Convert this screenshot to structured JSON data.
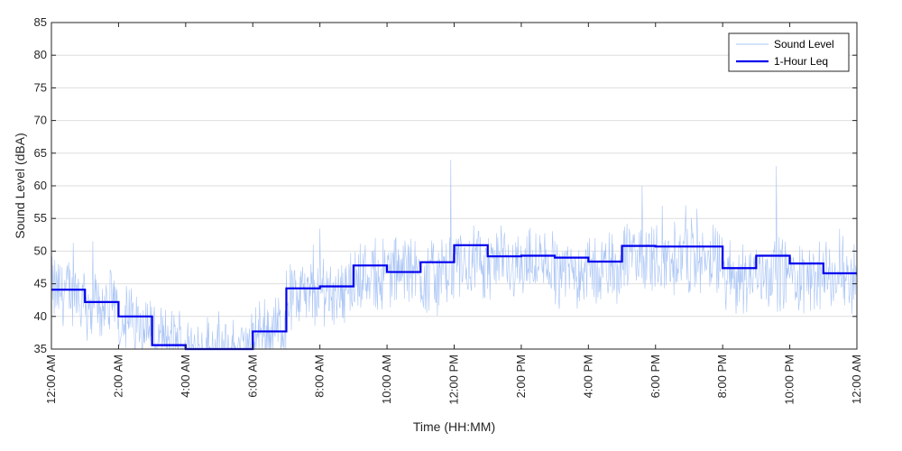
{
  "chart_data": {
    "type": "line",
    "xlabel": "Time (HH:MM)",
    "ylabel": "Sound Level (dBA)",
    "ylim": [
      35,
      85
    ],
    "xlim_hours": [
      0,
      24
    ],
    "yticks": [
      35,
      40,
      45,
      50,
      55,
      60,
      65,
      70,
      75,
      80,
      85
    ],
    "xtick_labels": [
      "12:00 AM",
      "2:00 AM",
      "4:00 AM",
      "6:00 AM",
      "8:00 AM",
      "10:00 AM",
      "12:00 PM",
      "2:00 PM",
      "4:00 PM",
      "6:00 PM",
      "8:00 PM",
      "10:00 PM",
      "12:00 AM"
    ],
    "grid": "horizontal",
    "legend_position": "top-right",
    "colors": {
      "sound_level": "#a9c4f5",
      "leq": "#0000ee",
      "grid": "#dedede",
      "axis": "#262626"
    },
    "series": [
      {
        "name": "Sound Level",
        "style": "thin-line",
        "hourly_mean": [
          44,
          42,
          40,
          36,
          35,
          34,
          37,
          43,
          44,
          46,
          47,
          46,
          48,
          48,
          48,
          47,
          47,
          49,
          49,
          49,
          46,
          47,
          46,
          46
        ],
        "peaks": [
          [
            11.9,
            64
          ],
          [
            21.6,
            63
          ],
          [
            17.6,
            60
          ],
          [
            18.9,
            57
          ],
          [
            7.8,
            51
          ]
        ]
      },
      {
        "name": "1-Hour Leq",
        "style": "step",
        "hours": [
          0,
          1,
          2,
          3,
          4,
          5,
          6,
          7,
          8,
          9,
          10,
          11,
          12,
          13,
          14,
          15,
          16,
          17,
          18,
          19,
          20,
          21,
          22,
          23
        ],
        "values": [
          44.1,
          42.2,
          40.0,
          35.6,
          34.0,
          33.0,
          37.7,
          44.3,
          44.6,
          47.8,
          46.8,
          48.3,
          50.9,
          49.2,
          49.3,
          49.0,
          48.4,
          50.8,
          50.7,
          50.7,
          47.4,
          49.3,
          48.1,
          46.6
        ]
      }
    ]
  }
}
